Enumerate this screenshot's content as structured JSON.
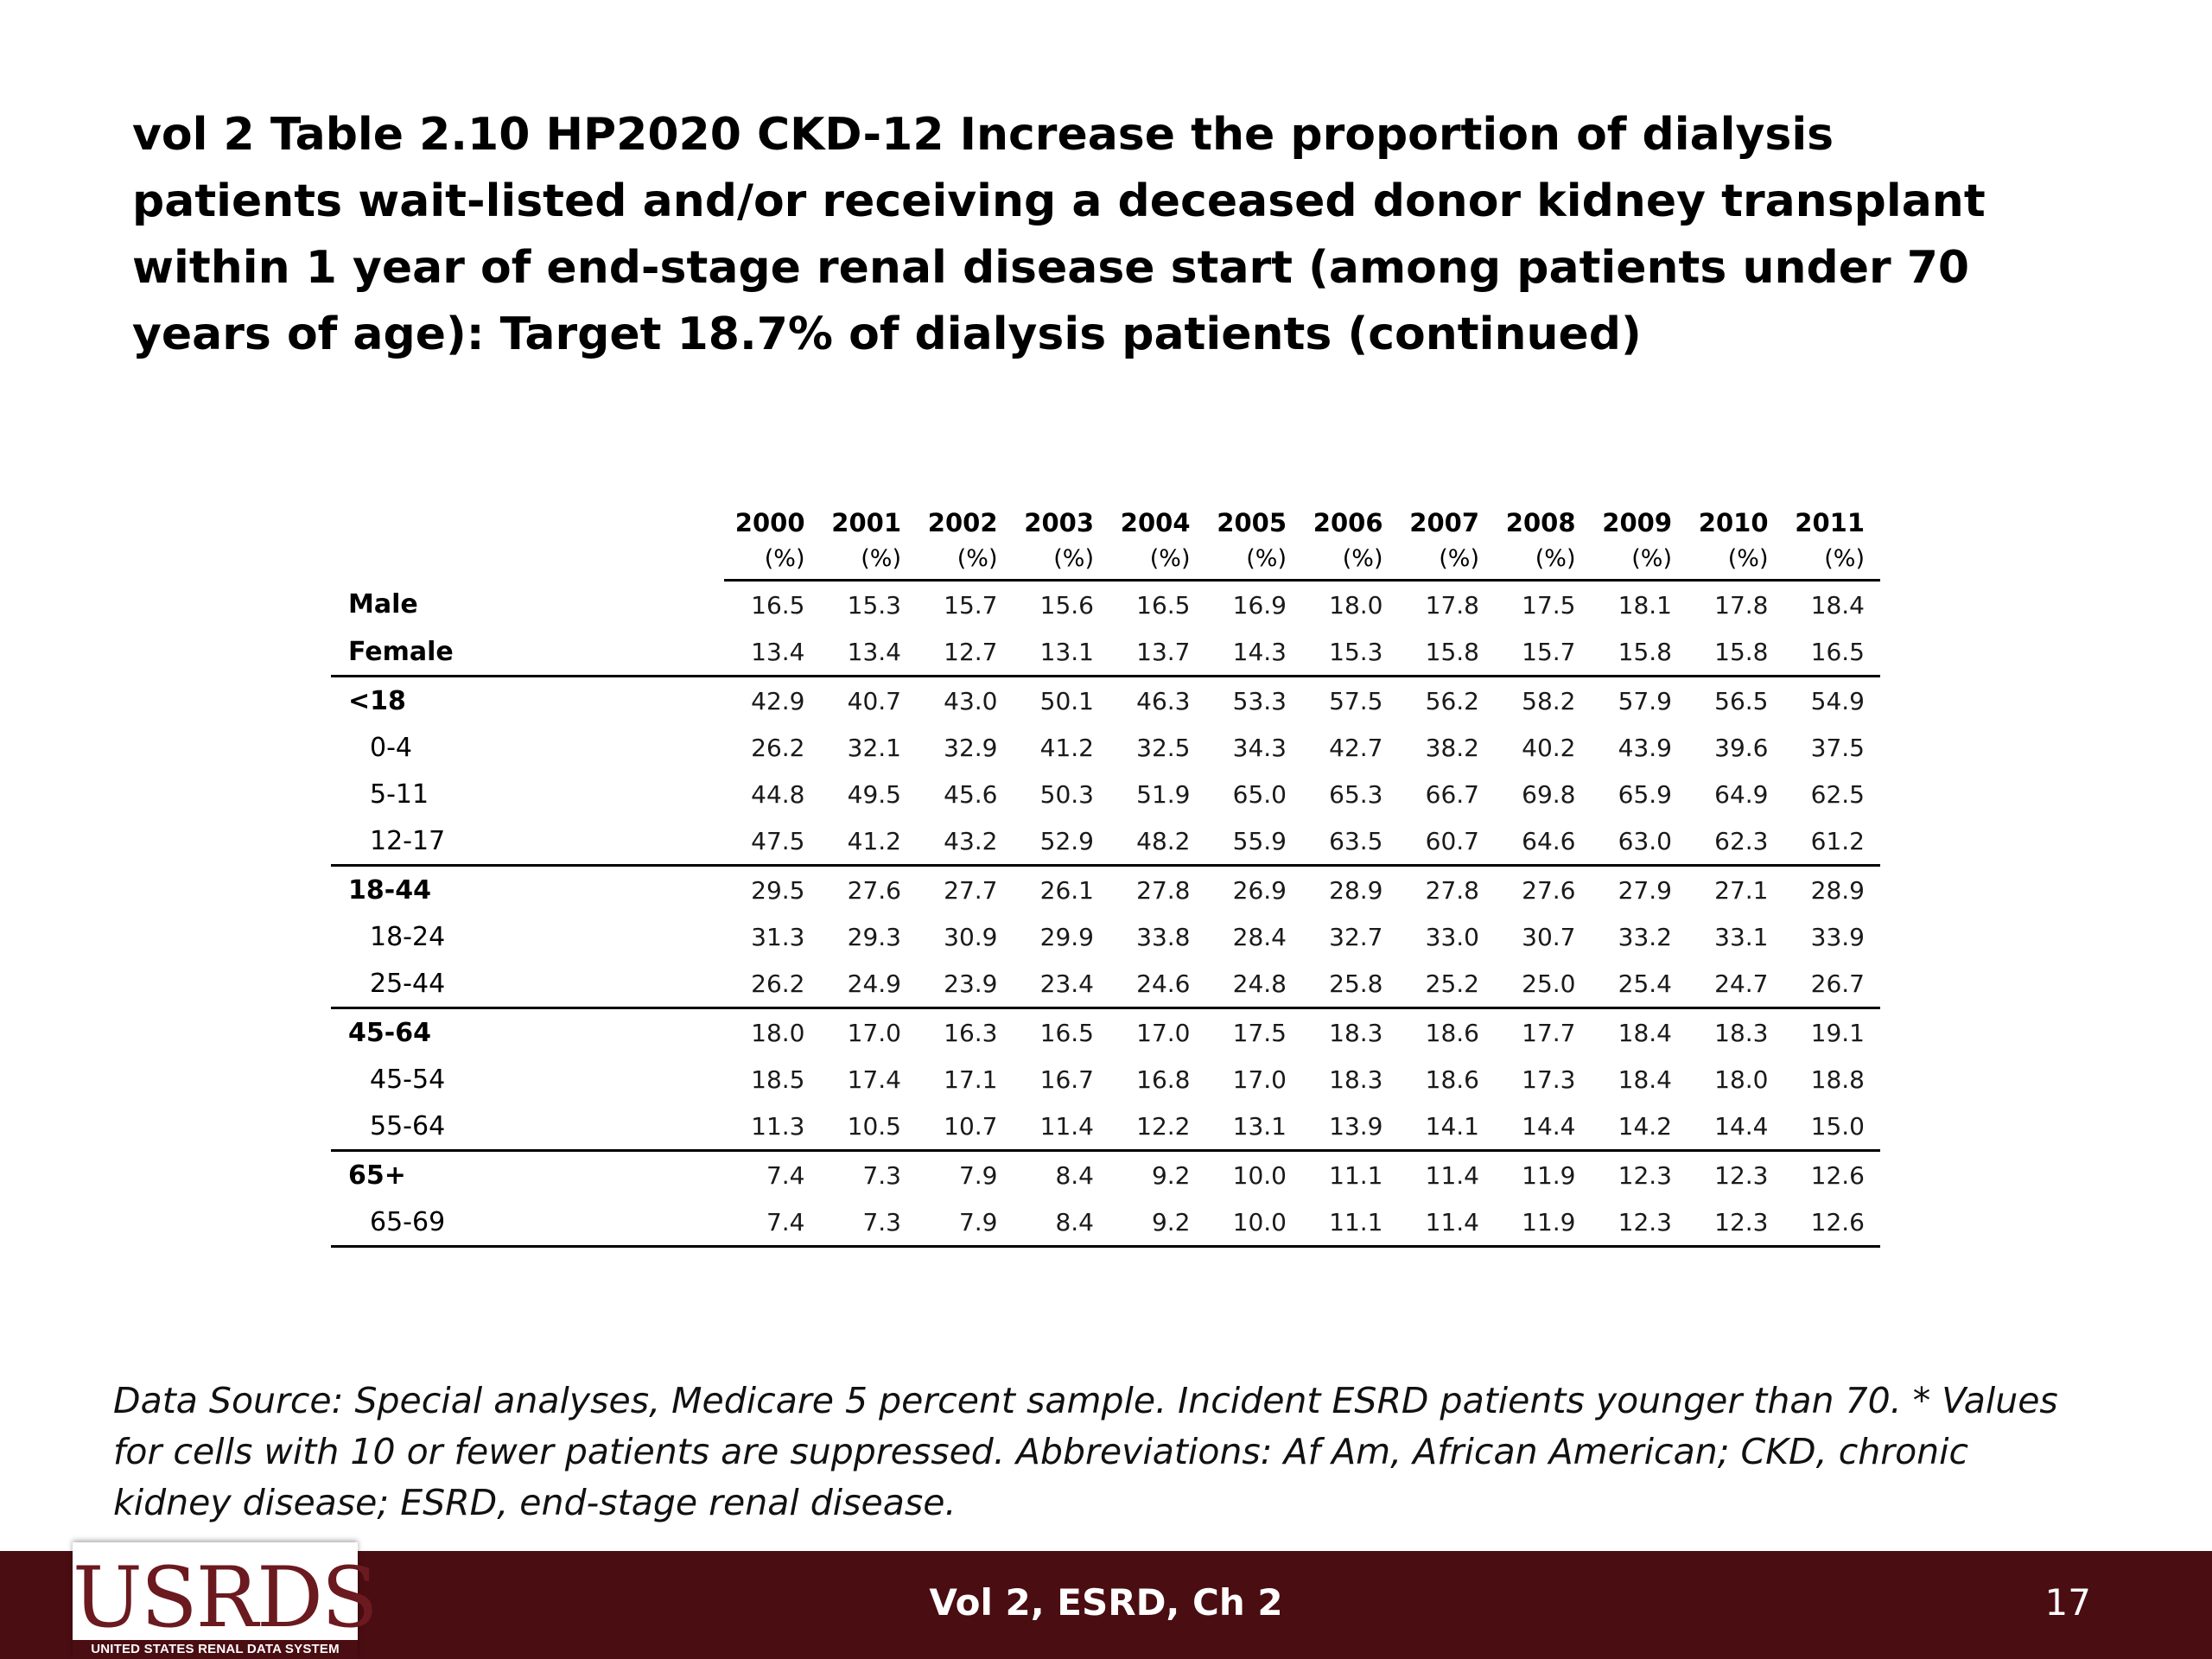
{
  "title": "vol 2 Table 2.10  HP2020 CKD-12 Increase the proportion of dialysis patients wait-listed and/or receiving a deceased donor kidney transplant within 1 year of end-stage renal disease start (among patients under 70 years of age): Target 18.7% of dialysis patients (continued)",
  "table": {
    "years": [
      "2000",
      "2001",
      "2002",
      "2003",
      "2004",
      "2005",
      "2006",
      "2007",
      "2008",
      "2009",
      "2010",
      "2011"
    ],
    "unit": "(%)",
    "rows": [
      {
        "label": "Male",
        "values": [
          "16.5",
          "15.3",
          "15.7",
          "15.6",
          "16.5",
          "16.9",
          "18.0",
          "17.8",
          "17.5",
          "18.1",
          "17.8",
          "18.4"
        ]
      },
      {
        "label": "Female",
        "values": [
          "13.4",
          "13.4",
          "12.7",
          "13.1",
          "13.7",
          "14.3",
          "15.3",
          "15.8",
          "15.7",
          "15.8",
          "15.8",
          "16.5"
        ]
      },
      {
        "label": "<18",
        "values": [
          "42.9",
          "40.7",
          "43.0",
          "50.1",
          "46.3",
          "53.3",
          "57.5",
          "56.2",
          "58.2",
          "57.9",
          "56.5",
          "54.9"
        ]
      },
      {
        "label": "0-4",
        "values": [
          "26.2",
          "32.1",
          "32.9",
          "41.2",
          "32.5",
          "34.3",
          "42.7",
          "38.2",
          "40.2",
          "43.9",
          "39.6",
          "37.5"
        ]
      },
      {
        "label": "5-11",
        "values": [
          "44.8",
          "49.5",
          "45.6",
          "50.3",
          "51.9",
          "65.0",
          "65.3",
          "66.7",
          "69.8",
          "65.9",
          "64.9",
          "62.5"
        ]
      },
      {
        "label": "12-17",
        "values": [
          "47.5",
          "41.2",
          "43.2",
          "52.9",
          "48.2",
          "55.9",
          "63.5",
          "60.7",
          "64.6",
          "63.0",
          "62.3",
          "61.2"
        ]
      },
      {
        "label": "18-44",
        "values": [
          "29.5",
          "27.6",
          "27.7",
          "26.1",
          "27.8",
          "26.9",
          "28.9",
          "27.8",
          "27.6",
          "27.9",
          "27.1",
          "28.9"
        ]
      },
      {
        "label": "18-24",
        "values": [
          "31.3",
          "29.3",
          "30.9",
          "29.9",
          "33.8",
          "28.4",
          "32.7",
          "33.0",
          "30.7",
          "33.2",
          "33.1",
          "33.9"
        ]
      },
      {
        "label": "25-44",
        "values": [
          "26.2",
          "24.9",
          "23.9",
          "23.4",
          "24.6",
          "24.8",
          "25.8",
          "25.2",
          "25.0",
          "25.4",
          "24.7",
          "26.7"
        ]
      },
      {
        "label": "45-64",
        "values": [
          "18.0",
          "17.0",
          "16.3",
          "16.5",
          "17.0",
          "17.5",
          "18.3",
          "18.6",
          "17.7",
          "18.4",
          "18.3",
          "19.1"
        ]
      },
      {
        "label": "45-54",
        "values": [
          "18.5",
          "17.4",
          "17.1",
          "16.7",
          "16.8",
          "17.0",
          "18.3",
          "18.6",
          "17.3",
          "18.4",
          "18.0",
          "18.8"
        ]
      },
      {
        "label": "55-64",
        "values": [
          "11.3",
          "10.5",
          "10.7",
          "11.4",
          "12.2",
          "13.1",
          "13.9",
          "14.1",
          "14.4",
          "14.2",
          "14.4",
          "15.0"
        ]
      },
      {
        "label": "65+",
        "values": [
          "7.4",
          "7.3",
          "7.9",
          "8.4",
          "9.2",
          "10.0",
          "11.1",
          "11.4",
          "11.9",
          "12.3",
          "12.3",
          "12.6"
        ]
      },
      {
        "label": "65-69",
        "values": [
          "7.4",
          "7.3",
          "7.9",
          "8.4",
          "9.2",
          "10.0",
          "11.1",
          "11.4",
          "11.9",
          "12.3",
          "12.3",
          "12.6"
        ]
      }
    ]
  },
  "footnote": "Data Source: Special analyses, Medicare 5 percent sample. Incident ESRD patients younger than 70. * Values for cells with 10 or fewer patients are suppressed. Abbreviations: Af Am, African American; CKD, chronic kidney disease; ESRD, end-stage renal disease.",
  "footer": {
    "title": "Vol 2, ESRD, Ch 2",
    "page_number": "17",
    "logo_text": "USRDS",
    "logo_subtext": "UNITED STATES RENAL DATA SYSTEM",
    "bar_color": "#4a0d12",
    "logo_color": "#6b1a1f"
  }
}
